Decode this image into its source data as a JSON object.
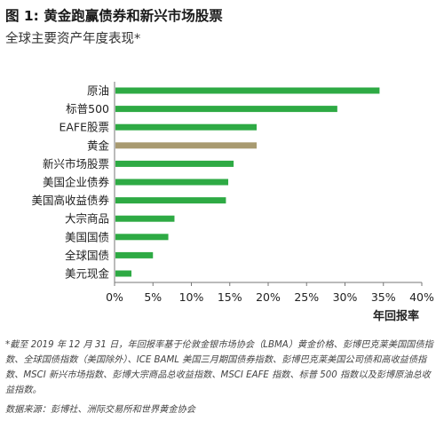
{
  "header": {
    "title": "图 1: 黄金跑赢债券和新兴市场股票",
    "subtitle": "全球主要资产年度表现*"
  },
  "chart_data": {
    "type": "bar",
    "orientation": "horizontal",
    "categories": [
      "原油",
      "标普500",
      "EAFE股票",
      "黄金",
      "新兴市场股票",
      "美国企业债券",
      "美国高收益债券",
      "大宗商品",
      "美国国债",
      "全球国债",
      "美元现金"
    ],
    "values": [
      34.5,
      29,
      18.5,
      18.5,
      15.5,
      14.8,
      14.5,
      7.8,
      7,
      5,
      2.2
    ],
    "colors": [
      "#2eaa44",
      "#2eaa44",
      "#2eaa44",
      "#a89a70",
      "#2eaa44",
      "#2eaa44",
      "#2eaa44",
      "#2eaa44",
      "#2eaa44",
      "#2eaa44",
      "#2eaa44"
    ],
    "xlim": [
      0,
      40
    ],
    "xticks": [
      "0%",
      "5%",
      "10%",
      "15%",
      "20%",
      "25%",
      "30%",
      "35%",
      "40%"
    ],
    "xlabel": "年回报率",
    "grid": false
  },
  "footnote": "*截至 2019 年 12 月 31 日，年回报率基于伦敦金银市场协会（LBMA）黄金价格、彭博巴克莱美国国债指数、全球国债指数（美国除外）、ICE BAML 美国三月期国债券指数、彭博巴克莱美国公司债和高收益债指数、MSCI 新兴市场指数、彭博大宗商品总收益指数、MSCI EAFE 指数、标普 500 指数以及彭博原油总收益指数。",
  "source": "数据来源：彭博社、洲际交易所和世界黄金协会"
}
